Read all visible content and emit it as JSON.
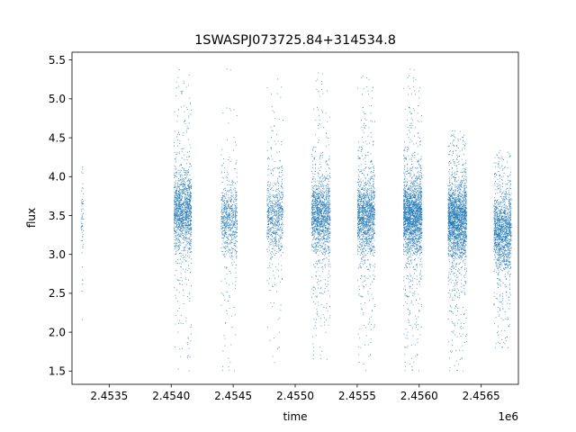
{
  "chart_data": {
    "type": "scatter",
    "title": "1SWASPJ073725.84+314534.8",
    "xlabel": "time",
    "ylabel": "flux",
    "x_offset_label": "1e6",
    "xlim": [
      2453200,
      2456800
    ],
    "ylim": [
      1.33,
      5.6
    ],
    "x_ticks": [
      2453500,
      2454000,
      2454500,
      2455000,
      2455500,
      2456000,
      2456500
    ],
    "x_tick_labels": [
      "2.4535",
      "2.4540",
      "2.4545",
      "2.4550",
      "2.4555",
      "2.4560",
      "2.4565"
    ],
    "y_ticks": [
      1.5,
      2.0,
      2.5,
      3.0,
      3.5,
      4.0,
      4.5,
      5.0,
      5.5
    ],
    "y_tick_labels": [
      "1.5",
      "2.0",
      "2.5",
      "3.0",
      "3.5",
      "4.0",
      "4.5",
      "5.0",
      "5.5"
    ],
    "grid": false,
    "series": [
      {
        "color": "#1f77b4",
        "observing_seasons": [
          {
            "t_start": 2453270,
            "t_end": 2453290,
            "flux_center": 3.5,
            "flux_min": 2.1,
            "flux_max": 4.25,
            "density": "sparse"
          },
          {
            "t_start": 2454020,
            "t_end": 2454160,
            "flux_center": 3.55,
            "flux_min": 1.5,
            "flux_max": 5.4,
            "density": "dense"
          },
          {
            "t_start": 2454400,
            "t_end": 2454530,
            "flux_center": 3.45,
            "flux_min": 1.5,
            "flux_max": 5.4,
            "density": "medium"
          },
          {
            "t_start": 2454770,
            "t_end": 2454900,
            "flux_center": 3.5,
            "flux_min": 1.6,
            "flux_max": 5.4,
            "density": "medium"
          },
          {
            "t_start": 2455130,
            "t_end": 2455280,
            "flux_center": 3.5,
            "flux_min": 1.65,
            "flux_max": 5.35,
            "density": "dense"
          },
          {
            "t_start": 2455500,
            "t_end": 2455640,
            "flux_center": 3.5,
            "flux_min": 1.5,
            "flux_max": 5.4,
            "density": "dense"
          },
          {
            "t_start": 2455870,
            "t_end": 2456020,
            "flux_center": 3.5,
            "flux_min": 1.5,
            "flux_max": 5.4,
            "density": "very dense"
          },
          {
            "t_start": 2456230,
            "t_end": 2456380,
            "flux_center": 3.45,
            "flux_min": 1.5,
            "flux_max": 4.6,
            "density": "very dense"
          },
          {
            "t_start": 2456600,
            "t_end": 2456740,
            "flux_center": 3.3,
            "flux_min": 1.8,
            "flux_max": 4.35,
            "density": "dense"
          }
        ]
      }
    ]
  }
}
